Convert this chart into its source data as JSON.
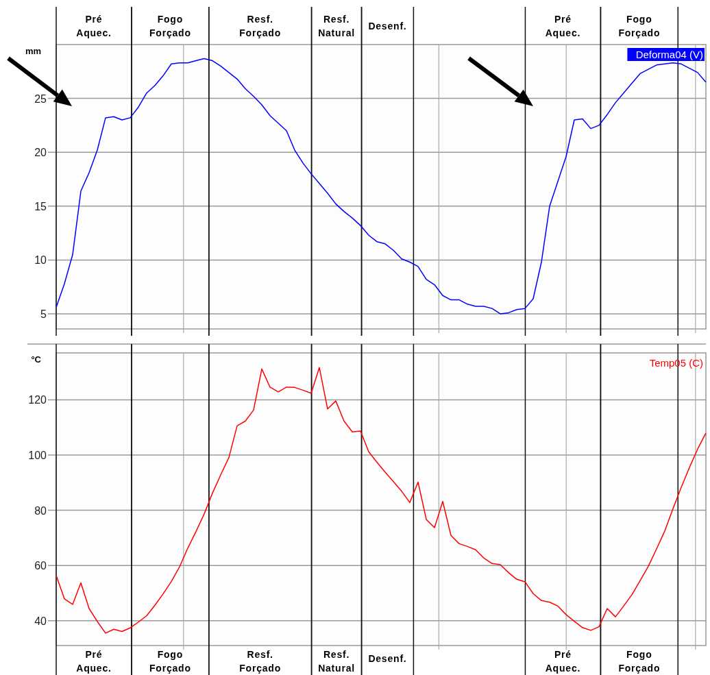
{
  "chart_data": [
    {
      "type": "line",
      "ylabel": "mm",
      "ylim": [
        3.6,
        30
      ],
      "yticks": [
        5,
        10,
        15,
        20,
        25
      ],
      "grid": true,
      "categories": [
        null,
        null,
        null,
        null,
        null,
        null,
        null,
        null,
        null,
        null,
        null,
        null,
        null,
        null,
        null,
        null,
        null,
        null,
        null,
        null,
        null,
        null,
        null,
        null,
        null,
        null,
        null,
        null,
        null,
        null,
        null,
        null,
        null,
        null,
        null,
        null,
        null,
        null,
        null,
        null,
        null,
        null,
        null,
        null,
        null,
        null,
        null,
        null,
        null,
        null,
        null,
        null,
        null,
        null,
        null,
        null,
        null,
        null,
        null,
        null,
        null,
        null,
        null,
        null,
        null,
        null,
        null,
        null,
        null,
        null,
        null,
        null,
        null,
        null,
        null,
        null,
        null,
        null,
        null,
        null
      ],
      "annotations": [
        "Pré Aquec.",
        "Fogo Forçado",
        "Resf. Forçado",
        "Resf. Natural",
        "Desenf.",
        "Pré Aquec.",
        "Fogo Forçado"
      ],
      "series": [
        {
          "name": "Deforma04 (V)",
          "color": "#0000ff",
          "values": [
            5.6,
            7.8,
            10.5,
            16.4,
            18.1,
            20.2,
            23.2,
            23.3,
            23.0,
            23.2,
            24.2,
            25.5,
            26.2,
            27.1,
            28.2,
            28.3,
            28.3,
            28.5,
            28.7,
            28.5,
            28.0,
            27.4,
            26.8,
            25.9,
            25.2,
            24.4,
            23.4,
            22.7,
            22.0,
            20.2,
            19.0,
            18.0,
            17.1,
            16.2,
            15.2,
            14.5,
            13.9,
            13.2,
            12.3,
            11.7,
            11.5,
            10.9,
            10.1,
            9.8,
            9.4,
            8.2,
            7.7,
            6.7,
            6.3,
            6.3,
            5.9,
            5.7,
            5.7,
            5.5,
            5.0,
            5.1,
            5.4,
            5.5,
            6.4,
            9.8,
            15.0,
            17.3,
            19.6,
            23.0,
            23.1,
            22.2,
            22.5,
            23.5,
            24.6,
            25.5,
            26.4,
            27.3,
            27.7,
            28.1,
            28.2,
            28.3,
            28.2,
            27.8,
            27.4,
            26.5
          ]
        }
      ]
    },
    {
      "type": "line",
      "ylabel": "°C",
      "ylim": [
        31,
        137
      ],
      "yticks": [
        40,
        60,
        80,
        100,
        120
      ],
      "grid": true,
      "categories": [
        null,
        null,
        null,
        null,
        null,
        null,
        null,
        null,
        null,
        null,
        null,
        null,
        null,
        null,
        null,
        null,
        null,
        null,
        null,
        null,
        null,
        null,
        null,
        null,
        null,
        null,
        null,
        null,
        null,
        null,
        null,
        null,
        null,
        null,
        null,
        null,
        null,
        null,
        null,
        null,
        null,
        null,
        null,
        null,
        null,
        null,
        null,
        null,
        null,
        null,
        null,
        null,
        null,
        null,
        null,
        null,
        null,
        null,
        null,
        null,
        null,
        null,
        null,
        null,
        null,
        null,
        null,
        null,
        null,
        null,
        null,
        null,
        null,
        null,
        null,
        null,
        null,
        null,
        null,
        null
      ],
      "annotations": [
        "Pré Aquec.",
        "Fogo Forçado",
        "Resf. Forçado",
        "Resf. Natural",
        "Desenf.",
        "Pré Aquec.",
        "Fogo Forçado"
      ],
      "series": [
        {
          "name": "Temp05 (C)",
          "color": "#ff0000",
          "values": [
            56.4,
            47.9,
            45.9,
            53.7,
            44.4,
            39.7,
            35.5,
            36.9,
            36.1,
            37.4,
            39.5,
            41.8,
            45.6,
            49.7,
            54.2,
            59.5,
            66.3,
            72.3,
            78.7,
            86.2,
            92.8,
            99.1,
            110.6,
            112.3,
            116.3,
            131.2,
            124.6,
            122.9,
            124.6,
            124.5,
            123.5,
            122.4,
            131.7,
            116.7,
            119.6,
            112.3,
            108.4,
            108.7,
            101.2,
            97.4,
            93.8,
            90.4,
            86.9,
            82.8,
            90.2,
            76.7,
            73.7,
            83.2,
            70.9,
            67.9,
            66.9,
            65.7,
            62.7,
            60.7,
            60.3,
            57.4,
            55.0,
            54.1,
            49.8,
            47.3,
            46.7,
            45.3,
            42.2,
            39.8,
            37.5,
            36.5,
            37.8,
            44.4,
            41.4,
            45.3,
            49.4,
            54.5,
            59.7,
            66.0,
            72.5,
            80.6,
            88.3,
            95.5,
            102.2,
            108.0
          ]
        }
      ]
    }
  ]
}
